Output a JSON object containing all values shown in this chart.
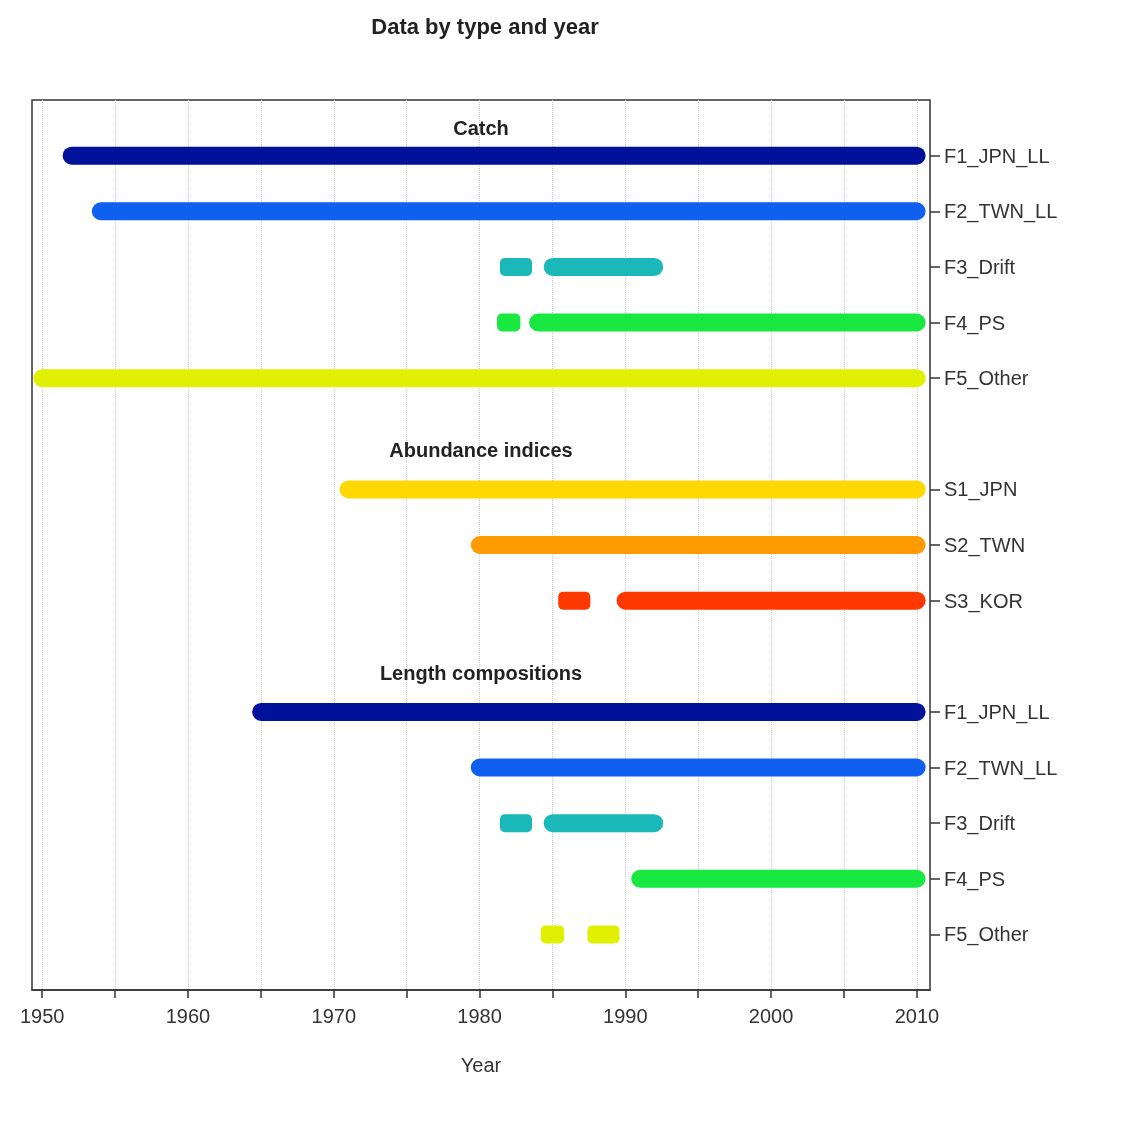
{
  "chart_data": {
    "type": "bar",
    "orientation": "horizontal",
    "title": "Data by type and year",
    "xlabel": "Year",
    "categories": [
      "F1_JPN_LL",
      "F2_TWN_LL",
      "F3_Drift",
      "F4_PS",
      "F5_Other",
      null,
      "S1_JPN",
      "S2_TWN",
      "S3_KOR",
      null,
      "F1_JPN_LL",
      "F2_TWN_LL",
      "F3_Drift",
      "F4_PS",
      "F5_Other"
    ],
    "series": [
      {
        "colors": [
          "#00129a",
          "#1060f0",
          "#1ab8b8",
          "#18e840",
          "#e0f000",
          null,
          "#ffd800",
          "#ff9a00",
          "#ff3800",
          null,
          "#00129a",
          "#1060f0",
          "#1ab8b8",
          "#18e840",
          "#e0f000"
        ],
        "base": [
          1951.4,
          1953.4,
          1981.4,
          1981.2,
          1949.4,
          null,
          1970.4,
          1979.4,
          1985.4,
          null,
          1964.4,
          1979.4,
          1981.4,
          1990.4,
          1984.2
        ],
        "values": [
          59.2,
          57.2,
          2.2,
          1.6,
          61.2,
          null,
          40.2,
          31.2,
          2.2,
          null,
          46.2,
          31.2,
          2.2,
          20.2,
          1.6
        ]
      },
      {
        "colors": [
          null,
          null,
          "#1ab8b8",
          "#18e840",
          null,
          null,
          null,
          null,
          "#ff3800",
          null,
          null,
          null,
          "#1ab8b8",
          null,
          "#e0f000"
        ],
        "base": [
          null,
          null,
          1984.4,
          1983.4,
          null,
          null,
          null,
          null,
          1989.4,
          null,
          null,
          null,
          1984.4,
          null,
          1987.4
        ],
        "values": [
          null,
          null,
          8.2,
          27.2,
          null,
          null,
          null,
          null,
          21.2,
          null,
          null,
          null,
          8.2,
          null,
          2.2
        ]
      }
    ],
    "annotations": [
      "Catch",
      "Abundance indices",
      "Length compositions"
    ],
    "xlim": [
      1949.3,
      2010.9
    ],
    "xticks": [
      1950,
      {
        "value": 1955,
        "label": null
      },
      1960,
      {
        "value": 1965,
        "label": null
      },
      1970,
      {
        "value": 1975,
        "label": null
      },
      1980,
      {
        "value": 1985,
        "label": null
      },
      1990,
      {
        "value": 1995,
        "label": null
      },
      2000,
      {
        "value": 2005,
        "label": null
      },
      2010
    ],
    "grid": "x"
  }
}
